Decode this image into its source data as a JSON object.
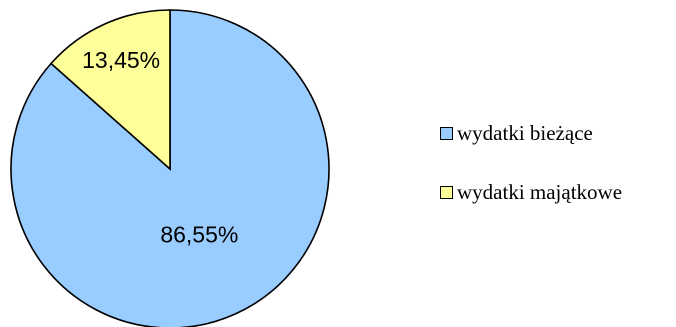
{
  "chart_data": {
    "type": "pie",
    "slices": [
      {
        "label": "wydatki bieżące",
        "value": 86.55,
        "display": "86,55%",
        "color": "#99ccff"
      },
      {
        "label": "wydatki majątkowe",
        "value": 13.45,
        "display": "13,45%",
        "color": "#ffff99"
      }
    ],
    "start_angle_deg": 0,
    "direction": "clockwise",
    "legend_position": "right",
    "slice_border_color": "#000000"
  }
}
